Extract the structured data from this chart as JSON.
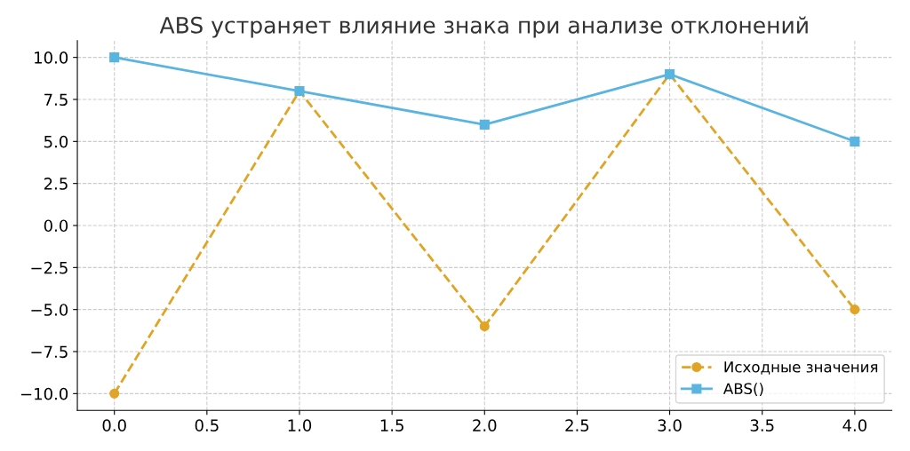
{
  "chart_data": {
    "type": "line",
    "title": "ABS устраняет влияние знака при анализе отклонений",
    "x": [
      0,
      1,
      2,
      3,
      4
    ],
    "series": [
      {
        "name": "Исходные значения",
        "color": "#e0a526",
        "values": [
          -10,
          8,
          -6,
          9,
          -5
        ],
        "marker": "circle",
        "line_style": "dashed"
      },
      {
        "name": "ABS()",
        "color": "#5ab4e0",
        "values": [
          10,
          8,
          6,
          9,
          5
        ],
        "marker": "square",
        "line_style": "solid"
      }
    ],
    "xlim": [
      -0.2,
      4.2
    ],
    "xticks": [
      {
        "value": 0,
        "label": "0.0"
      },
      {
        "value": 0.5,
        "label": "0.5"
      },
      {
        "value": 1,
        "label": "1.0"
      },
      {
        "value": 1.5,
        "label": "1.5"
      },
      {
        "value": 2,
        "label": "2.0"
      },
      {
        "value": 2.5,
        "label": "2.5"
      },
      {
        "value": 3,
        "label": "3.0"
      },
      {
        "value": 3.5,
        "label": "3.5"
      },
      {
        "value": 4,
        "label": "4.0"
      }
    ],
    "ylim": [
      -11,
      11
    ],
    "yticks": [
      {
        "value": -10,
        "label": "−10.0"
      },
      {
        "value": -7.5,
        "label": "−7.5"
      },
      {
        "value": -5,
        "label": "−5.0"
      },
      {
        "value": -2.5,
        "label": "−2.5"
      },
      {
        "value": 0,
        "label": "0.0"
      },
      {
        "value": 2.5,
        "label": "2.5"
      },
      {
        "value": 5,
        "label": "5.0"
      },
      {
        "value": 7.5,
        "label": "7.5"
      },
      {
        "value": 10,
        "label": "10.0"
      }
    ],
    "grid": true,
    "legend": "bottom right"
  }
}
